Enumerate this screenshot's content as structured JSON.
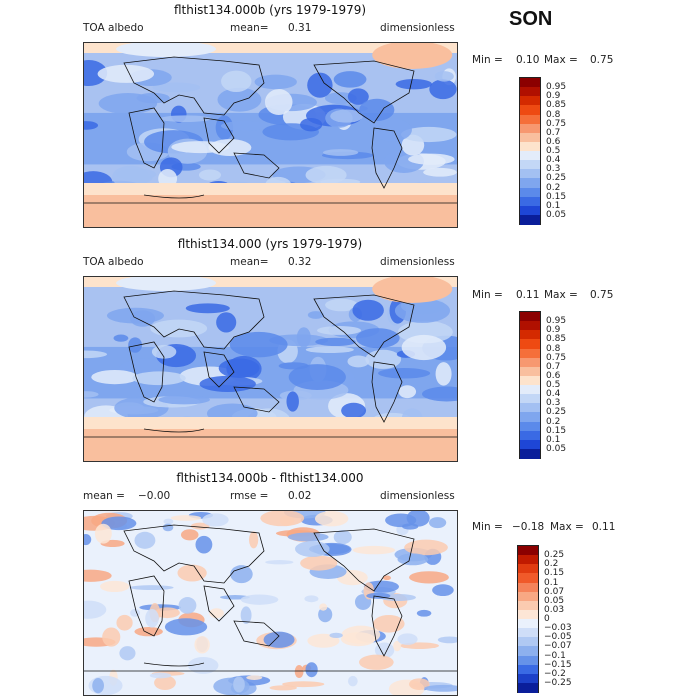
{
  "season": "SON",
  "panels": [
    {
      "title": "flthist134.000b (yrs 1979-1979)",
      "left_label": "TOA albedo",
      "mid_label": "mean=",
      "mid_value": "0.31",
      "right_label": "dimensionless",
      "min_label": "Min =",
      "min_value": "0.10",
      "max_label": "Max =",
      "max_value": "0.75",
      "cb_labels": [
        "0.95",
        "0.9",
        "0.85",
        "0.8",
        "0.75",
        "0.7",
        "0.6",
        "0.5",
        "0.4",
        "0.3",
        "0.25",
        "0.2",
        "0.15",
        "0.1",
        "0.05"
      ]
    },
    {
      "title": "flthist134.000 (yrs 1979-1979)",
      "left_label": "TOA albedo",
      "mid_label": "mean=",
      "mid_value": "0.32",
      "right_label": "dimensionless",
      "min_label": "Min =",
      "min_value": "0.11",
      "max_label": "Max =",
      "max_value": "0.75",
      "cb_labels": [
        "0.95",
        "0.9",
        "0.85",
        "0.8",
        "0.75",
        "0.7",
        "0.6",
        "0.5",
        "0.4",
        "0.3",
        "0.25",
        "0.2",
        "0.15",
        "0.1",
        "0.05"
      ]
    },
    {
      "title": "flthist134.000b - flthist134.000",
      "left_label": "mean =",
      "left_value": "−0.00",
      "mid_label": "rmse =",
      "mid_value": "0.02",
      "right_label": "dimensionless",
      "min_label": "Min =",
      "min_value": "−0.18",
      "max_label": "Max =",
      "max_value": "0.11",
      "cb_labels": [
        "0.25",
        "0.2",
        "0.15",
        "0.1",
        "0.07",
        "0.05",
        "0.03",
        "0",
        "−0.03",
        "−0.05",
        "−0.07",
        "−0.1",
        "−0.15",
        "−0.2",
        "−0.25"
      ]
    }
  ],
  "colors": {
    "abs_scale": [
      "#8b0000",
      "#b01000",
      "#d42a00",
      "#ee4a12",
      "#f56f3a",
      "#f79870",
      "#f9bf9e",
      "#fde3cc",
      "#e3ecfa",
      "#c3d7f6",
      "#a3c0f2",
      "#7fa6ee",
      "#5b8aea",
      "#3a6ae4",
      "#1e46d6",
      "#0a1e9a"
    ],
    "diff_scale": [
      "#8b0000",
      "#c01a00",
      "#e03b10",
      "#f05a2a",
      "#f5835a",
      "#f8a884",
      "#fbcbb0",
      "#fde6d6",
      "#eaf1fc",
      "#cfdef8",
      "#b0c9f3",
      "#8db0ee",
      "#6692e9",
      "#3a6ae4",
      "#1c40c8",
      "#0a1e9a"
    ]
  }
}
